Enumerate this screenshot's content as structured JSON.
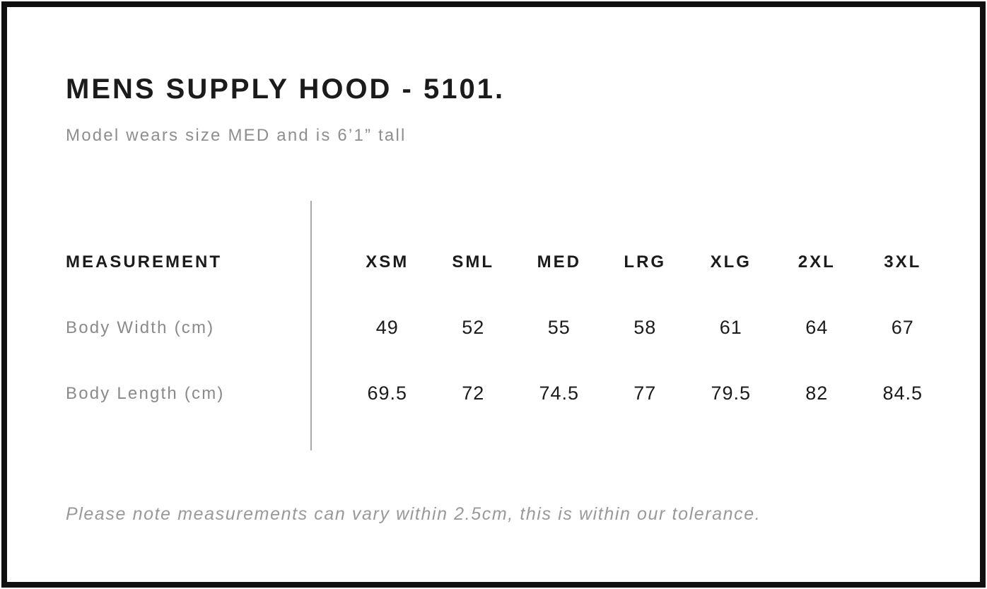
{
  "header": {
    "title": "MENS SUPPLY HOOD - 5101.",
    "subtitle": "Model wears size MED and is 6’1” tall"
  },
  "table": {
    "measurement_header": "MEASUREMENT",
    "size_headers": [
      "XSM",
      "SML",
      "MED",
      "LRG",
      "XLG",
      "2XL",
      "3XL"
    ],
    "rows": [
      {
        "label": "Body Width (cm)",
        "values": [
          "49",
          "52",
          "55",
          "58",
          "61",
          "64",
          "67"
        ]
      },
      {
        "label": "Body Length (cm)",
        "values": [
          "69.5",
          "72",
          "74.5",
          "77",
          "79.5",
          "82",
          "84.5"
        ]
      }
    ]
  },
  "footer": {
    "note": "Please note measurements can vary within 2.5cm, this is within our tolerance."
  },
  "colors": {
    "text_primary": "#1b1b1b",
    "text_secondary": "#8e8e8e",
    "divider": "#a9a9a9",
    "frame_border": "#101010",
    "background": "#ffffff"
  }
}
